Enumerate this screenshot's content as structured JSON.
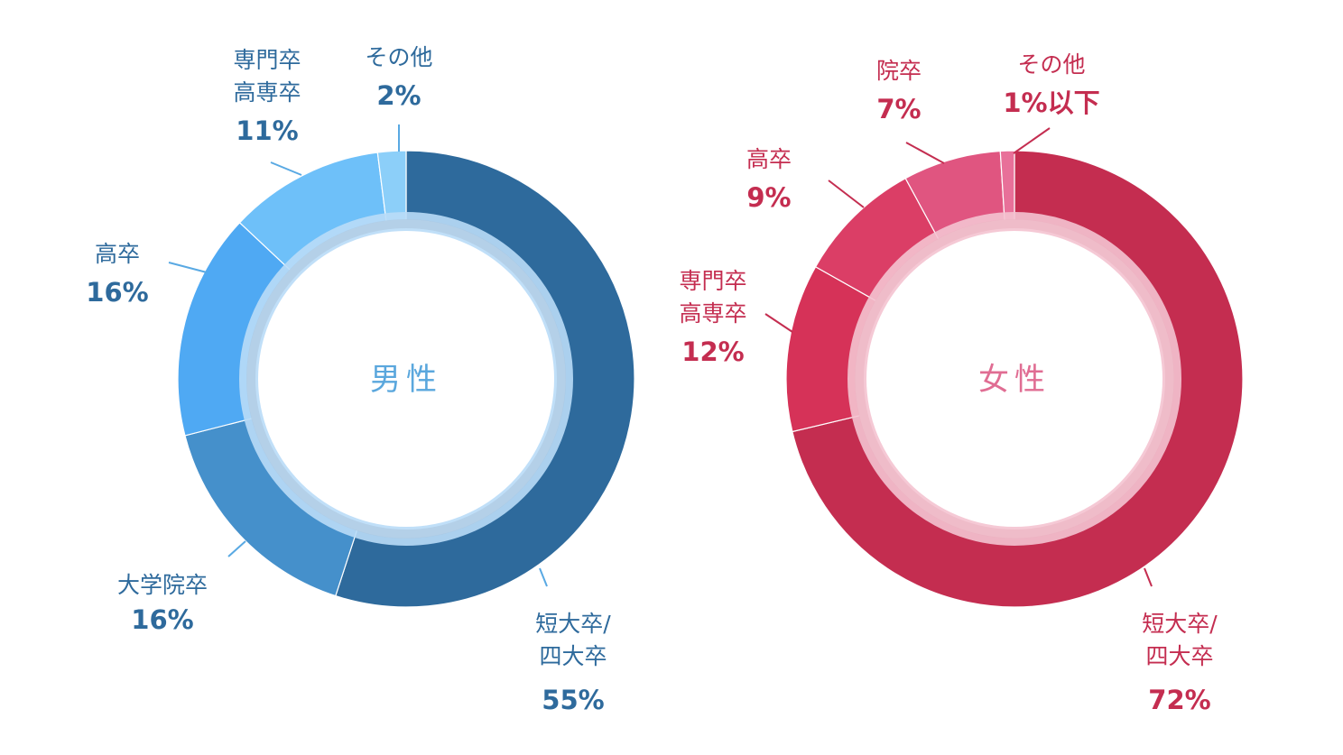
{
  "chart_data": [
    {
      "type": "donut",
      "title": "男性",
      "center_label": "男性",
      "series": [
        {
          "label": "短大卒/四大卒",
          "lines": [
            "短大卒/",
            "四大卒"
          ],
          "value": 55,
          "value_label": "55%",
          "color": "#2e6a9c"
        },
        {
          "label": "大学院卒",
          "lines": [
            "大学院卒"
          ],
          "value": 16,
          "value_label": "16%",
          "color": "#4590cb"
        },
        {
          "label": "高卒",
          "lines": [
            "高卒"
          ],
          "value": 16,
          "value_label": "16%",
          "color": "#4fa9f3"
        },
        {
          "label": "専門卒高専卒",
          "lines": [
            "専門卒",
            "高専卒"
          ],
          "value": 11,
          "value_label": "11%",
          "color": "#6ec0f9"
        },
        {
          "label": "その他",
          "lines": [
            "その他"
          ],
          "value": 2,
          "value_label": "2%",
          "color": "#8ccff9"
        }
      ],
      "colors": {
        "label": "#2e6a9c",
        "pct": "#2e6a9c",
        "center": "#5aa7dd",
        "inner_ring": "#b9dcf7",
        "inner_ring_dark": "#a9c3da",
        "leader": "#59a9e3"
      }
    },
    {
      "type": "donut",
      "title": "女性",
      "center_label": "女性",
      "series": [
        {
          "label": "短大卒/四大卒",
          "lines": [
            "短大卒/",
            "四大卒"
          ],
          "value": 72,
          "value_label": "72%",
          "color": "#c42d50"
        },
        {
          "label": "専門卒高専卒",
          "lines": [
            "専門卒",
            "高専卒"
          ],
          "value": 12,
          "value_label": "12%",
          "color": "#d63258"
        },
        {
          "label": "高卒",
          "lines": [
            "高卒"
          ],
          "value": 9,
          "value_label": "9%",
          "color": "#db3e66"
        },
        {
          "label": "院卒",
          "lines": [
            "院卒"
          ],
          "value": 7,
          "value_label": "7%",
          "color": "#e05580"
        },
        {
          "label": "その他",
          "lines": [
            "その他"
          ],
          "value": 1,
          "value_label": "1%以下",
          "color": "#e87099"
        }
      ],
      "colors": {
        "label": "#c42d50",
        "pct": "#c42d50",
        "center": "#e06d93",
        "inner_ring": "#f4c3d0",
        "inner_ring_dark": "#e9b0bf",
        "leader": "#c42d50"
      }
    }
  ]
}
